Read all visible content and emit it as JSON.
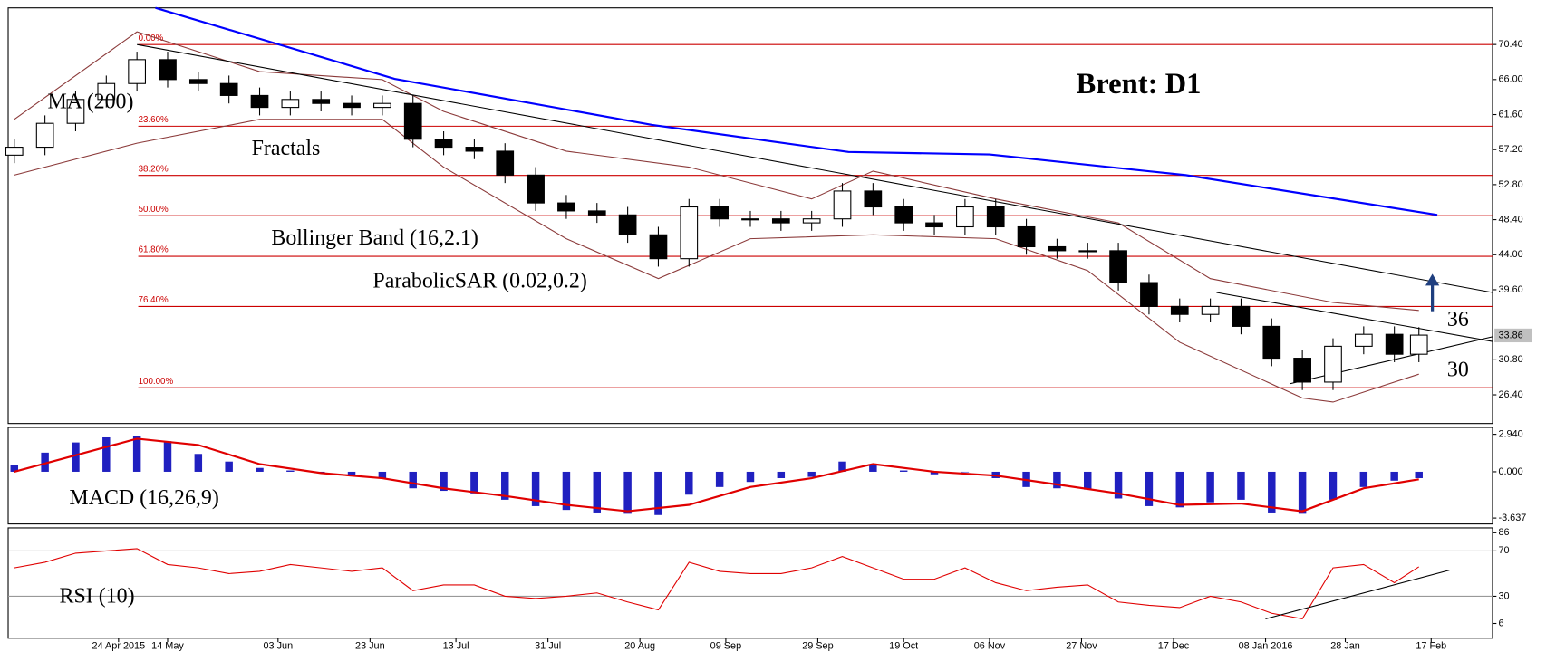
{
  "chart_data": [
    {
      "type": "candlestick",
      "title": "Brent: D1",
      "annotations": [
        "MA (200)",
        "Fractals",
        "Bollinger Band (16,2.1)",
        "ParabolicSAR (0.02,0.2)",
        "36",
        "30"
      ],
      "xlim": [
        0,
        242
      ],
      "ylim": [
        22.8,
        75.0
      ],
      "yticks": [
        {
          "value": 70.4,
          "label": "70.40"
        },
        {
          "value": 66,
          "label": "66.00"
        },
        {
          "value": 61.6,
          "label": "61.60"
        },
        {
          "value": 57.2,
          "label": "57.20"
        },
        {
          "value": 52.8,
          "label": "52.80"
        },
        {
          "value": 48.4,
          "label": "48.40"
        },
        {
          "value": 44,
          "label": "44.00"
        },
        {
          "value": 39.6,
          "label": "39.60"
        },
        {
          "value": 30.8,
          "label": "30.80"
        },
        {
          "value": 26.4,
          "label": "26.40"
        }
      ],
      "last_price": {
        "value": 33.86,
        "label": "33.86"
      },
      "levels": [
        {
          "value": 70.4,
          "label": "0.00%"
        },
        {
          "value": 60.14,
          "label": "23.60%"
        },
        {
          "value": 53.96,
          "label": "38.20%"
        },
        {
          "value": 48.9,
          "label": "50.00%"
        },
        {
          "value": 43.8,
          "label": "61.80%"
        },
        {
          "value": 37.5,
          "label": "76.40%"
        },
        {
          "value": 27.3,
          "label": "100.00%"
        }
      ],
      "level_color": "#cc0000",
      "candle_colors": {
        "up": "#ffffff",
        "down": "#000000",
        "edge": "#000000"
      },
      "x": [
        1,
        6,
        11,
        16,
        21,
        26,
        31,
        36,
        41,
        46,
        51,
        56,
        61,
        66,
        71,
        76,
        81,
        86,
        91,
        96,
        101,
        106,
        111,
        116,
        121,
        126,
        131,
        136,
        141,
        146,
        151,
        156,
        161,
        166,
        171,
        176,
        181,
        186,
        191,
        196,
        201,
        206,
        211,
        216,
        221,
        226,
        230
      ],
      "open": [
        56.5,
        57.5,
        60.5,
        63.5,
        65.5,
        68.5,
        66,
        65.5,
        64,
        62.5,
        63.5,
        63,
        62.5,
        63,
        58.5,
        57.5,
        57,
        54,
        50.5,
        49.5,
        49,
        46.5,
        43.5,
        50,
        48.5,
        48.5,
        48,
        48.5,
        52,
        50,
        48,
        47.5,
        50,
        47.5,
        45,
        44.5,
        44.5,
        40.5,
        37.5,
        36.5,
        37.5,
        35,
        31,
        28,
        32.5,
        34,
        31.5
      ],
      "high": [
        58.5,
        61.5,
        64.5,
        66.5,
        69.5,
        69.5,
        67,
        66.5,
        65,
        64.5,
        64.5,
        64,
        64,
        64,
        59.5,
        58.5,
        58,
        55,
        51.5,
        50.5,
        50,
        47.5,
        51,
        51,
        49.5,
        49.5,
        49.5,
        53,
        53,
        51,
        49,
        51,
        51,
        48.5,
        46,
        45.5,
        45.5,
        41.5,
        38.5,
        38.5,
        38.5,
        36,
        32,
        33.5,
        35,
        35,
        34.9
      ],
      "low": [
        55.5,
        56.5,
        59.5,
        62.5,
        64.5,
        65,
        64.5,
        63,
        61.5,
        61.5,
        62,
        61.5,
        61.5,
        57.5,
        56.5,
        56,
        53,
        49.5,
        48.5,
        48,
        45.5,
        42.5,
        42.5,
        47.5,
        47.5,
        47,
        47,
        47.5,
        49,
        47,
        46.5,
        46.5,
        46.5,
        44,
        43.5,
        43.5,
        39.5,
        36.5,
        35.5,
        35.5,
        34,
        30,
        27,
        27,
        31.5,
        30.5,
        30.5
      ],
      "close": [
        57.5,
        60.5,
        63.5,
        65.5,
        68.5,
        66,
        65.5,
        64,
        62.5,
        63.5,
        63,
        62.5,
        63,
        58.5,
        57.5,
        57,
        54,
        50.5,
        49.5,
        49,
        46.5,
        43.5,
        50,
        48.5,
        48.5,
        48,
        48.5,
        52,
        50,
        48,
        47.5,
        50,
        47.5,
        45,
        44.5,
        44.5,
        40.5,
        37.5,
        36.5,
        37.5,
        35,
        31,
        28,
        32.5,
        34,
        31.5,
        33.9
      ],
      "series": [
        {
          "color": "#0000ff",
          "width": 2,
          "x": [
            24,
            63,
            105,
            137,
            160,
            192,
            233
          ],
          "values": [
            75.0,
            66.1,
            60.3,
            56.9,
            56.6,
            54.0,
            49.0
          ]
        },
        {
          "color": "#8b3a3a",
          "width": 1,
          "x": [
            1,
            21,
            41,
            61,
            71,
            91,
            111,
            131,
            141,
            161,
            181,
            196,
            216,
            230
          ],
          "values": [
            61,
            72,
            67,
            66,
            62,
            57,
            55,
            51,
            54.5,
            51,
            48,
            41,
            38,
            37
          ]
        },
        {
          "color": "#8b3a3a",
          "width": 1,
          "x": [
            1,
            21,
            41,
            61,
            71,
            91,
            106,
            121,
            141,
            161,
            176,
            191,
            211,
            216,
            230
          ],
          "values": [
            54,
            58,
            61,
            61,
            55,
            46,
            41,
            46,
            46.5,
            46,
            42,
            33,
            26,
            25.5,
            29
          ]
        },
        {
          "color": "#000000",
          "width": 1,
          "x": [
            21,
            242
          ],
          "values": [
            70.4,
            39.25
          ]
        },
        {
          "color": "#000000",
          "width": 1,
          "x": [
            197,
            242
          ],
          "values": [
            39.25,
            33.1
          ]
        },
        {
          "color": "#000000",
          "width": 1,
          "x": [
            209,
            242
          ],
          "values": [
            27.8,
            33.7
          ]
        }
      ]
    },
    {
      "type": "macd",
      "label": "MACD (16,26,9)",
      "xlim": [
        0,
        242
      ],
      "ylim": [
        -4.1,
        3.48
      ],
      "yticks": [
        {
          "value": 2.94,
          "label": "2.940"
        },
        {
          "value": 0,
          "label": "0.000"
        },
        {
          "value": -3.637,
          "label": "-3.637"
        }
      ],
      "histogram_color": "#2020c0",
      "x": [
        1,
        6,
        11,
        16,
        21,
        26,
        31,
        36,
        41,
        46,
        51,
        56,
        61,
        66,
        71,
        76,
        81,
        86,
        91,
        96,
        101,
        106,
        111,
        116,
        121,
        126,
        131,
        136,
        141,
        146,
        151,
        156,
        161,
        166,
        171,
        176,
        181,
        186,
        191,
        196,
        201,
        206,
        211,
        216,
        221,
        226,
        230
      ],
      "values": [
        0.5,
        1.5,
        2.3,
        2.7,
        2.8,
        2.4,
        1.4,
        0.8,
        0.3,
        0.1,
        -0.1,
        -0.3,
        -0.5,
        -1.3,
        -1.5,
        -1.7,
        -2.2,
        -2.7,
        -3.0,
        -3.2,
        -3.3,
        -3.4,
        -1.8,
        -1.2,
        -0.8,
        -0.5,
        -0.4,
        0.8,
        0.6,
        0.1,
        -0.2,
        0.0,
        -0.5,
        -1.2,
        -1.3,
        -1.4,
        -2.1,
        -2.7,
        -2.8,
        -2.4,
        -2.2,
        -3.2,
        -3.3,
        -2.2,
        -1.2,
        -0.7,
        -0.5
      ],
      "signal": {
        "color": "#e00000",
        "x": [
          1,
          11,
          21,
          31,
          41,
          51,
          61,
          71,
          81,
          91,
          101,
          111,
          121,
          131,
          141,
          151,
          161,
          171,
          181,
          191,
          201,
          211,
          221,
          230
        ],
        "values": [
          0.0,
          1.3,
          2.6,
          2.1,
          0.6,
          -0.1,
          -0.5,
          -1.3,
          -1.9,
          -2.6,
          -3.1,
          -2.6,
          -1.2,
          -0.5,
          0.6,
          0.0,
          -0.3,
          -1.0,
          -1.7,
          -2.6,
          -2.5,
          -3.1,
          -1.3,
          -0.6
        ]
      }
    },
    {
      "type": "line",
      "label": "RSI (10)",
      "xlim": [
        0,
        242
      ],
      "ylim": [
        -7,
        90.3
      ],
      "yticks": [
        86,
        70,
        30,
        6
      ],
      "levels": [
        70,
        30
      ],
      "color": "#e00000",
      "xticks": [
        {
          "value": 18,
          "label": "24 Apr 2015"
        },
        {
          "value": 26,
          "label": "14 May"
        },
        {
          "value": 44,
          "label": "03 Jun"
        },
        {
          "value": 59,
          "label": "23 Jun"
        },
        {
          "value": 73,
          "label": "13 Jul"
        },
        {
          "value": 88,
          "label": "31 Jul"
        },
        {
          "value": 103,
          "label": "20 Aug"
        },
        {
          "value": 117,
          "label": "09 Sep"
        },
        {
          "value": 132,
          "label": "29 Sep"
        },
        {
          "value": 146,
          "label": "19 Oct"
        },
        {
          "value": 160,
          "label": "06 Nov"
        },
        {
          "value": 175,
          "label": "27 Nov"
        },
        {
          "value": 190,
          "label": "17 Dec"
        },
        {
          "value": 205,
          "label": "08 Jan 2016"
        },
        {
          "value": 218,
          "label": "28 Jan"
        },
        {
          "value": 232,
          "label": "17 Feb"
        }
      ],
      "x": [
        1,
        6,
        11,
        16,
        21,
        26,
        31,
        36,
        41,
        46,
        51,
        56,
        61,
        66,
        71,
        76,
        81,
        86,
        91,
        96,
        101,
        106,
        111,
        116,
        121,
        126,
        131,
        136,
        141,
        146,
        151,
        156,
        161,
        166,
        171,
        176,
        181,
        186,
        191,
        196,
        201,
        206,
        211,
        216,
        221,
        226,
        230
      ],
      "values": [
        55,
        60,
        68,
        70,
        72,
        58,
        55,
        50,
        52,
        58,
        55,
        52,
        55,
        35,
        40,
        40,
        30,
        28,
        30,
        33,
        25,
        18,
        60,
        52,
        50,
        50,
        55,
        65,
        55,
        45,
        45,
        55,
        42,
        35,
        38,
        40,
        25,
        22,
        20,
        30,
        25,
        15,
        10,
        55,
        58,
        42,
        56
      ],
      "trend": {
        "color": "#000000",
        "x": [
          205,
          235
        ],
        "values": [
          10,
          53
        ]
      }
    }
  ]
}
